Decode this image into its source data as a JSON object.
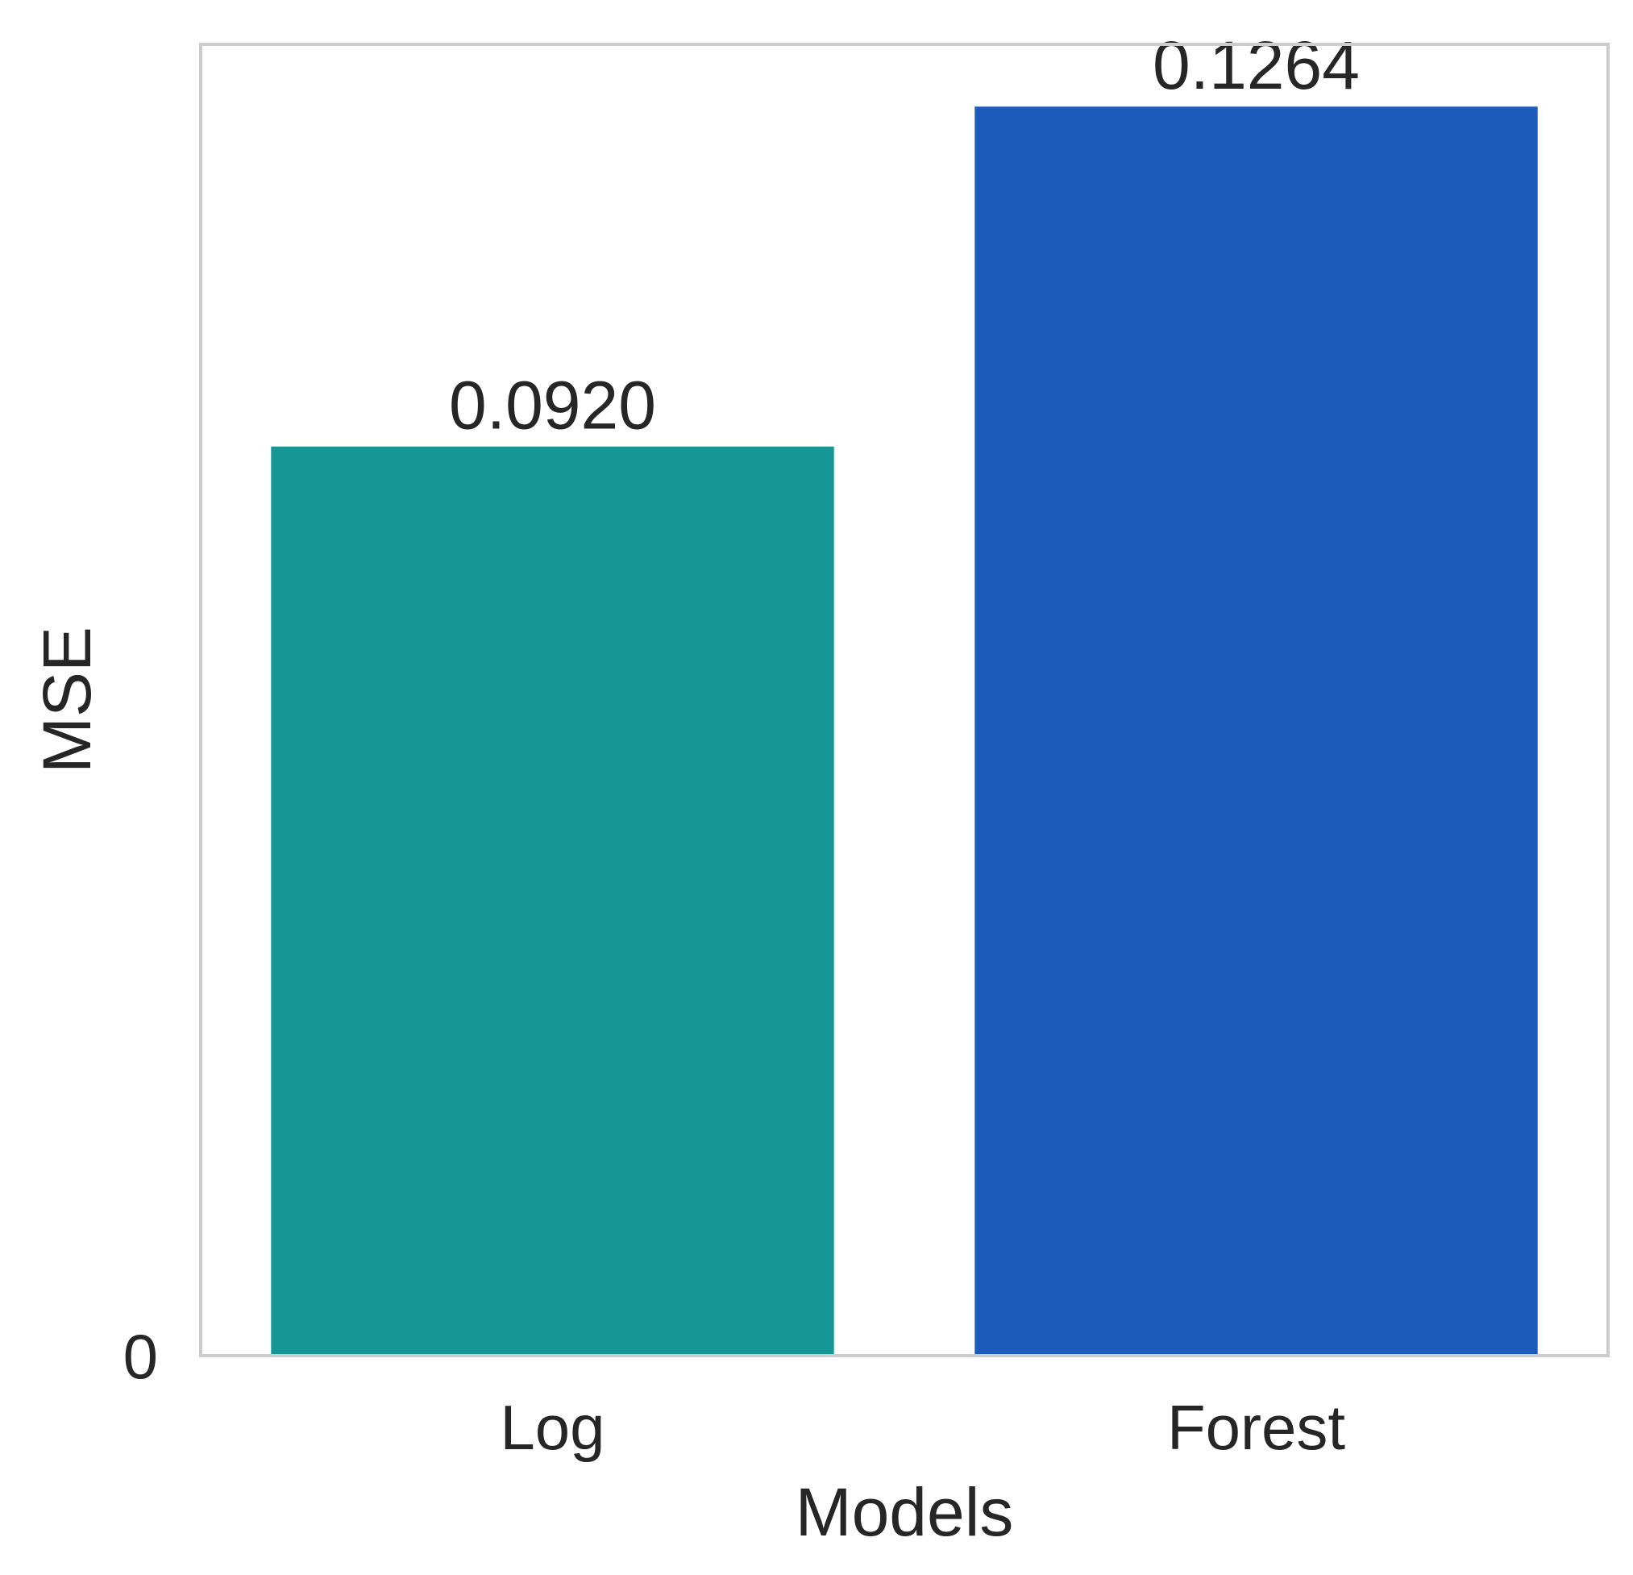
{
  "chart_data": {
    "type": "bar",
    "title": "",
    "xlabel": "Models",
    "ylabel": "MSE",
    "categories": [
      "Log",
      "Forest"
    ],
    "values": [
      0.092,
      0.1264
    ],
    "value_labels": [
      "0.0920",
      "0.1264"
    ],
    "bar_colors": [
      "#169695",
      "#1c5bba"
    ],
    "yticks": [
      0
    ],
    "ytick_labels": [
      "0"
    ],
    "ylim": [
      0,
      0.1327
    ],
    "grid": false,
    "legend": "none",
    "frame_color": "#cccccc",
    "text_color": "#262626",
    "background": "#ffffff"
  }
}
